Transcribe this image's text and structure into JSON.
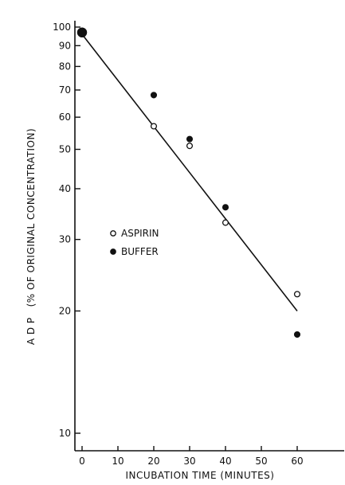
{
  "chart_data": {
    "type": "scatter",
    "xlabel": "INCUBATION TIME (MINUTES)",
    "ylabel": "A D P   (% OF ORIGINAL CONCENTRATION)",
    "xlim": [
      0,
      70
    ],
    "ylim": [
      10,
      100
    ],
    "yscale": "log",
    "grid": false,
    "legend_position": "center-left",
    "x_ticks": [
      0,
      10,
      20,
      30,
      40,
      50,
      60
    ],
    "x_tick_labels": [
      "0",
      "10",
      "20",
      "30",
      "40",
      "50",
      "60"
    ],
    "y_ticks": [
      10,
      20,
      30,
      40,
      50,
      60,
      70,
      80,
      90,
      100
    ],
    "y_tick_labels": [
      "10",
      "20",
      "30",
      "40",
      "50",
      "60",
      "70",
      "80",
      "90",
      "100"
    ],
    "series": [
      {
        "name": "ASPIRIN",
        "marker": "open-circle",
        "x": [
          0,
          20,
          30,
          40,
          60
        ],
        "y": [
          97,
          57,
          51,
          33,
          22
        ]
      },
      {
        "name": "BUFFER",
        "marker": "filled-circle",
        "x": [
          0,
          20,
          30,
          40,
          60
        ],
        "y": [
          97,
          68,
          53,
          36,
          17.5
        ]
      }
    ],
    "fit_line": {
      "x": [
        0,
        60
      ],
      "y": [
        96,
        20
      ]
    }
  }
}
